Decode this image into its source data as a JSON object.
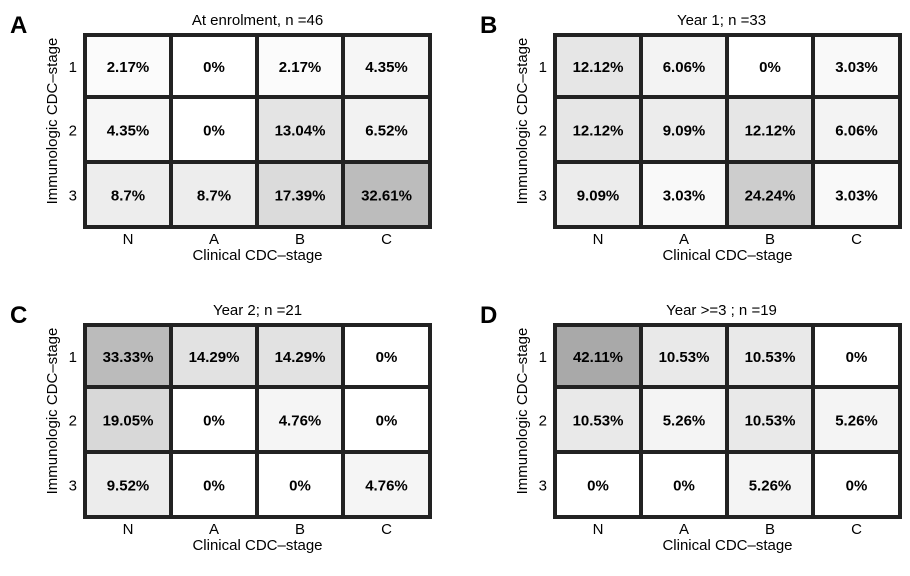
{
  "chart_data": [
    {
      "type": "heatmap",
      "panel_label": "A",
      "title": "At enrolment, n =46",
      "xlabel": "Clinical CDC–stage",
      "ylabel": "Immunologic CDC–stage",
      "x_categories": [
        "N",
        "A",
        "B",
        "C"
      ],
      "y_categories": [
        "1",
        "2",
        "3"
      ],
      "values": [
        [
          2.17,
          0,
          2.17,
          4.35
        ],
        [
          4.35,
          0,
          13.04,
          6.52
        ],
        [
          8.7,
          8.7,
          17.39,
          32.61
        ]
      ],
      "labels": [
        [
          "2.17%",
          "0%",
          "2.17%",
          "4.35%"
        ],
        [
          "4.35%",
          "0%",
          "13.04%",
          "6.52%"
        ],
        [
          "8.7%",
          "8.7%",
          "17.39%",
          "32.61%"
        ]
      ]
    },
    {
      "type": "heatmap",
      "panel_label": "B",
      "title": "Year 1; n =33",
      "xlabel": "Clinical CDC–stage",
      "ylabel": "Immunologic CDC–stage",
      "x_categories": [
        "N",
        "A",
        "B",
        "C"
      ],
      "y_categories": [
        "1",
        "2",
        "3"
      ],
      "values": [
        [
          12.12,
          6.06,
          0,
          3.03
        ],
        [
          12.12,
          9.09,
          12.12,
          6.06
        ],
        [
          9.09,
          3.03,
          24.24,
          3.03
        ]
      ],
      "labels": [
        [
          "12.12%",
          "6.06%",
          "0%",
          "3.03%"
        ],
        [
          "12.12%",
          "9.09%",
          "12.12%",
          "6.06%"
        ],
        [
          "9.09%",
          "3.03%",
          "24.24%",
          "3.03%"
        ]
      ]
    },
    {
      "type": "heatmap",
      "panel_label": "C",
      "title": "Year 2; n =21",
      "xlabel": "Clinical CDC–stage",
      "ylabel": "Immunologic CDC–stage",
      "x_categories": [
        "N",
        "A",
        "B",
        "C"
      ],
      "y_categories": [
        "1",
        "2",
        "3"
      ],
      "values": [
        [
          33.33,
          14.29,
          14.29,
          0
        ],
        [
          19.05,
          0,
          4.76,
          0
        ],
        [
          9.52,
          0,
          0,
          4.76
        ]
      ],
      "labels": [
        [
          "33.33%",
          "14.29%",
          "14.29%",
          "0%"
        ],
        [
          "19.05%",
          "0%",
          "4.76%",
          "0%"
        ],
        [
          "9.52%",
          "0%",
          "0%",
          "4.76%"
        ]
      ]
    },
    {
      "type": "heatmap",
      "panel_label": "D",
      "title": "Year  >=3 ; n =19",
      "xlabel": "Clinical CDC–stage",
      "ylabel": "Immunologic CDC–stage",
      "x_categories": [
        "N",
        "A",
        "B",
        "C"
      ],
      "y_categories": [
        "1",
        "2",
        "3"
      ],
      "values": [
        [
          42.11,
          10.53,
          10.53,
          0
        ],
        [
          10.53,
          5.26,
          10.53,
          5.26
        ],
        [
          0,
          0,
          5.26,
          0
        ]
      ],
      "labels": [
        [
          "42.11%",
          "10.53%",
          "10.53%",
          "0%"
        ],
        [
          "10.53%",
          "5.26%",
          "10.53%",
          "5.26%"
        ],
        [
          "0%",
          "0%",
          "5.26%",
          "0%"
        ]
      ]
    }
  ],
  "colors": {
    "grid_line": "#222222",
    "low": "#ffffff",
    "high": "#a9a9a9",
    "text": "#000000"
  }
}
